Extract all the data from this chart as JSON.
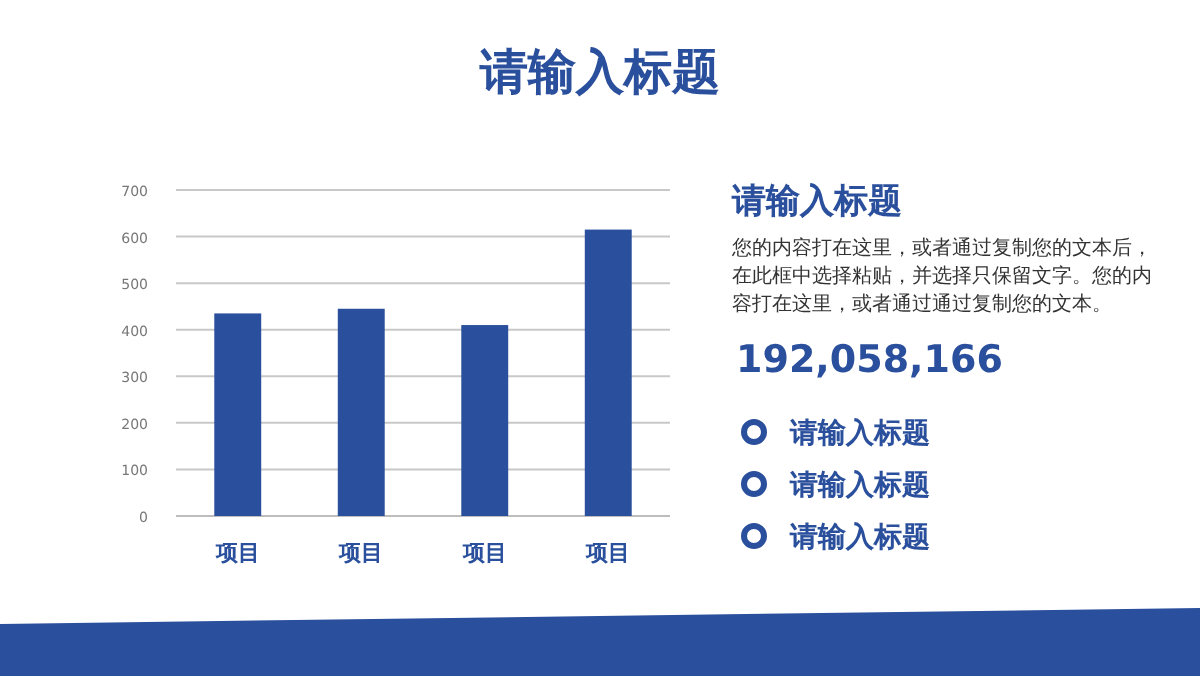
{
  "chart_data": {
    "type": "bar",
    "title": "请输入标题",
    "categories": [
      "项目",
      "项目",
      "项目",
      "项目"
    ],
    "values": [
      435,
      445,
      410,
      615
    ],
    "color": "#2a4f9c",
    "ylim": [
      0,
      700
    ],
    "yticks": [
      0,
      100,
      200,
      300,
      400,
      500,
      600,
      700
    ],
    "grid": "y",
    "annotations": [
      "请输入标题",
      "您的内容打在这里，或者通过复制您的文本后，在此框中选择粘贴，并选择只保留文字。您的内容打在这里，或者通过通过复制您的文本。",
      "192,058,166",
      "请输入标题",
      "请输入标题",
      "请输入标题"
    ]
  }
}
